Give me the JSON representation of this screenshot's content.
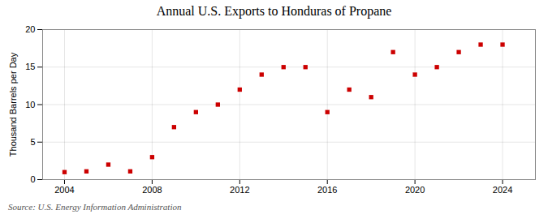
{
  "chart_data": {
    "type": "scatter",
    "title": "Annual U.S. Exports to Honduras of Propane",
    "ylabel": "Thousand Barrels per Day",
    "annotations": [
      "Source: U.S. Energy Information Administration"
    ],
    "x": [
      2004,
      2005,
      2006,
      2007,
      2008,
      2009,
      2010,
      2011,
      2012,
      2013,
      2014,
      2015,
      2016,
      2017,
      2018,
      2019,
      2020,
      2021,
      2022,
      2023,
      2024
    ],
    "values": [
      1.0,
      1.1,
      2.0,
      1.1,
      3.0,
      7.0,
      9.0,
      10.0,
      12.0,
      14.0,
      15.0,
      15.0,
      9.0,
      12.0,
      11.0,
      17.0,
      14.0,
      15.0,
      17.0,
      18.0,
      18.0
    ],
    "color": "#cc0000",
    "marker": "square",
    "xlim": [
      2003.0,
      2025.5
    ],
    "ylim": [
      0,
      20
    ],
    "xticks": [
      2004,
      2008,
      2012,
      2016,
      2020,
      2024
    ],
    "yticks": [
      0,
      5,
      10,
      15,
      20
    ],
    "grid": true
  }
}
